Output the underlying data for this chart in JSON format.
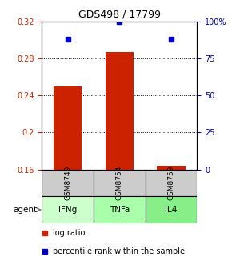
{
  "title": "GDS498 / 17799",
  "samples": [
    "GSM8749",
    "GSM8754",
    "GSM8759"
  ],
  "agents": [
    "IFNg",
    "TNFa",
    "IL4"
  ],
  "log_ratio": [
    0.25,
    0.287,
    0.164
  ],
  "percentile_rank": [
    88,
    100,
    88
  ],
  "bar_baseline": 0.16,
  "ylim_left": [
    0.16,
    0.32
  ],
  "ylim_right": [
    0,
    100
  ],
  "yticks_left": [
    0.16,
    0.2,
    0.24,
    0.28,
    0.32
  ],
  "yticks_right": [
    0,
    25,
    50,
    75,
    100
  ],
  "ytick_labels_left": [
    "0.16",
    "0.2",
    "0.24",
    "0.28",
    "0.32"
  ],
  "ytick_labels_right": [
    "0",
    "25",
    "50",
    "75",
    "100%"
  ],
  "bar_color": "#cc2200",
  "dot_color": "#0000cc",
  "agent_colors": [
    "#ccffcc",
    "#aaffaa",
    "#88ee88"
  ],
  "sample_box_color": "#cccccc",
  "grid_color": "#000000",
  "background_color": "#ffffff",
  "legend_log_ratio_label": "log ratio",
  "legend_percentile_label": "percentile rank within the sample"
}
